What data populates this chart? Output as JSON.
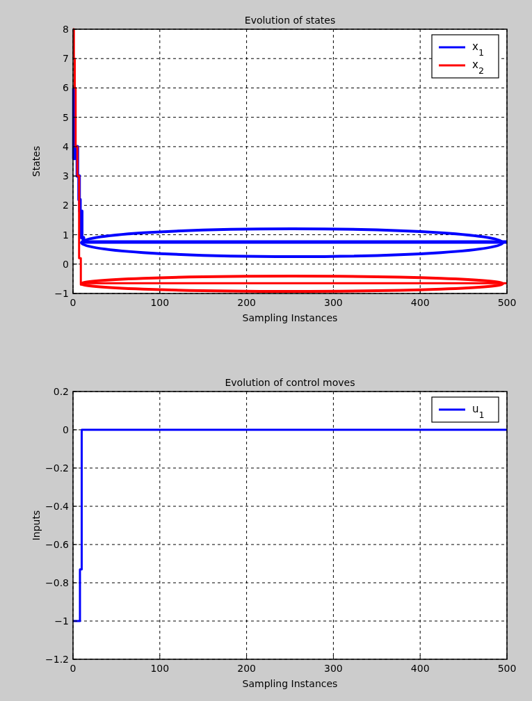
{
  "chart_data": [
    {
      "type": "step",
      "title": "Evolution of states",
      "xlabel": "Sampling Instances",
      "ylabel": "States",
      "xlim": [
        0,
        500
      ],
      "xticks": [
        0,
        100,
        200,
        300,
        400,
        500
      ],
      "ylim": [
        -1,
        8
      ],
      "yticks": [
        -1,
        0,
        1,
        2,
        3,
        4,
        5,
        6,
        7,
        8
      ],
      "grid": true,
      "legend": "top right",
      "series": [
        {
          "name": "x$_{1}$",
          "color": "#0000ff",
          "x": [
            0,
            1,
            2,
            3,
            5,
            7,
            8,
            10,
            12,
            500
          ],
          "values": [
            6,
            3.6,
            4,
            4,
            3,
            2.2,
            1.8,
            0.9,
            0.75,
            0.75
          ]
        },
        {
          "name": "x$_{2}$",
          "color": "#ff0000",
          "x": [
            0,
            1,
            2,
            3,
            5,
            7,
            9,
            14,
            500
          ],
          "values": [
            8,
            7,
            6,
            4,
            3,
            0.2,
            -0.7,
            -0.65,
            -0.65
          ]
        }
      ]
    },
    {
      "type": "step",
      "title": "Evolution of control moves",
      "xlabel": "Sampling Instances",
      "ylabel": "Inputs",
      "xlim": [
        0,
        500
      ],
      "xticks": [
        0,
        100,
        200,
        300,
        400,
        500
      ],
      "ylim": [
        -1.2,
        0.2
      ],
      "yticks": [
        -1.2,
        -1,
        -0.8,
        -0.6,
        -0.4,
        -0.2,
        0,
        0.2
      ],
      "grid": true,
      "legend": "top right",
      "series": [
        {
          "name": "u$_{1}$",
          "color": "#0000ff",
          "x": [
            0,
            8,
            10,
            500
          ],
          "values": [
            -1,
            -0.73,
            0,
            0
          ]
        }
      ]
    }
  ]
}
